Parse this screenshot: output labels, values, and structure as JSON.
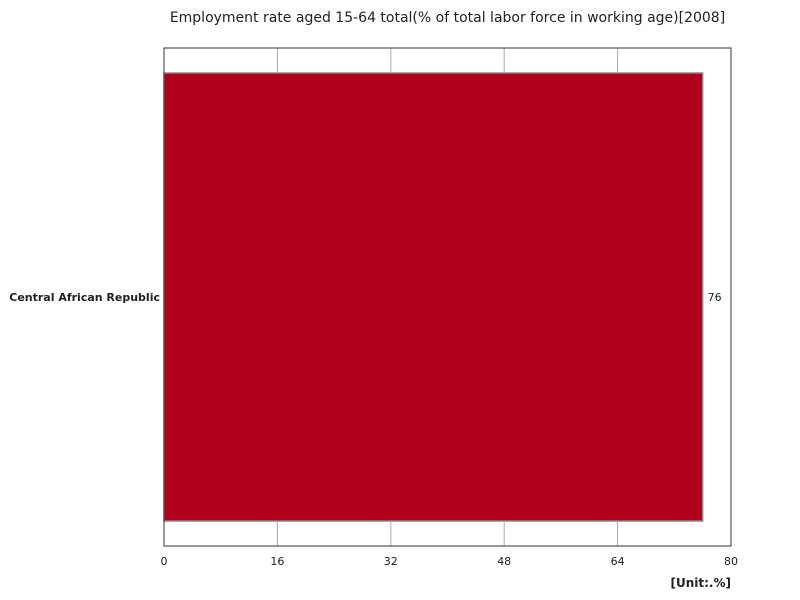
{
  "chart_data": {
    "type": "bar",
    "orientation": "horizontal",
    "title": "Employment rate aged 15-64 total(% of total labor force in working age)[2008]",
    "categories": [
      "Central African Republic"
    ],
    "values": [
      76
    ],
    "value_labels": [
      "76"
    ],
    "xlim": [
      0,
      80
    ],
    "x_ticks": [
      "0",
      "16",
      "32",
      "48",
      "64",
      "80"
    ],
    "unit_label": "[Unit:.%]",
    "grid": true,
    "bar_color": "#b0001e"
  }
}
